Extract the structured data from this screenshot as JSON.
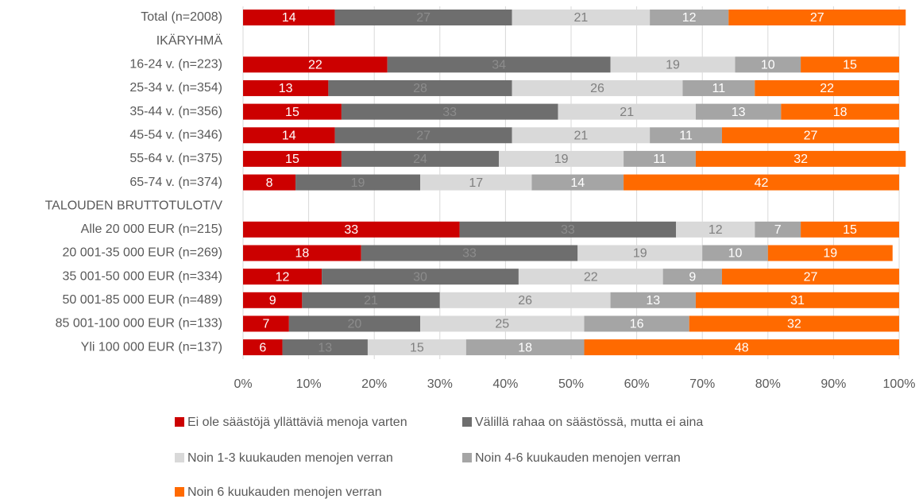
{
  "chart_data": {
    "type": "stacked_bar_horizontal",
    "categories": [
      "Total (n=2008)",
      "IKÄRYHMÄ",
      "16-24 v. (n=223)",
      "25-34 v. (n=354)",
      "35-44 v. (n=356)",
      "45-54 v. (n=346)",
      "55-64 v. (n=375)",
      "65-74 v. (n=374)",
      "TALOUDEN BRUTTOTULOT/V",
      "Alle 20 000 EUR (n=215)",
      "20 001-35 000 EUR (n=269)",
      "35 001-50 000 EUR (n=334)",
      "50 001-85 000 EUR (n=489)",
      "85 001-100 000 EUR (n=133)",
      "Yli 100 000 EUR (n=137)"
    ],
    "series": [
      {
        "name": "Ei ole säästöjä yllättäviä menoja varten",
        "color": "#cc0000",
        "label_color": "#ffffff",
        "values": [
          14,
          null,
          22,
          13,
          15,
          14,
          15,
          8,
          null,
          33,
          18,
          12,
          9,
          7,
          6
        ]
      },
      {
        "name": "Välillä rahaa on säästössä, mutta ei aina",
        "color": "#6e6e6e",
        "label_color": "#8c8c8c",
        "values": [
          27,
          null,
          34,
          28,
          33,
          27,
          24,
          19,
          null,
          33,
          33,
          30,
          21,
          20,
          13
        ]
      },
      {
        "name": "Noin 1-3 kuukauden menojen verran",
        "color": "#d9d9d9",
        "label_color": "#7f7f7f",
        "values": [
          21,
          null,
          19,
          26,
          21,
          21,
          19,
          17,
          null,
          12,
          19,
          22,
          26,
          25,
          15
        ]
      },
      {
        "name": "Noin 4-6 kuukauden menojen verran",
        "color": "#a5a5a5",
        "label_color": "#ffffff",
        "values": [
          12,
          null,
          10,
          11,
          13,
          11,
          11,
          14,
          null,
          7,
          10,
          9,
          13,
          16,
          18
        ]
      },
      {
        "name": "Noin 6 kuukauden menojen verran",
        "color": "#ff6a00",
        "label_color": "#ffffff",
        "values": [
          27,
          null,
          15,
          22,
          18,
          27,
          32,
          42,
          null,
          15,
          19,
          27,
          31,
          32,
          48
        ]
      }
    ],
    "xlim": [
      0,
      100
    ],
    "xticks": [
      {
        "value": 0,
        "label": "0%"
      },
      {
        "value": 10,
        "label": "10%"
      },
      {
        "value": 20,
        "label": "20%"
      },
      {
        "value": 30,
        "label": "30%"
      },
      {
        "value": 40,
        "label": "40%"
      },
      {
        "value": 50,
        "label": "50%"
      },
      {
        "value": 60,
        "label": "60%"
      },
      {
        "value": 70,
        "label": "70%"
      },
      {
        "value": 80,
        "label": "80%"
      },
      {
        "value": 90,
        "label": "90%"
      },
      {
        "value": 100,
        "label": "100%"
      }
    ],
    "grid": true
  }
}
